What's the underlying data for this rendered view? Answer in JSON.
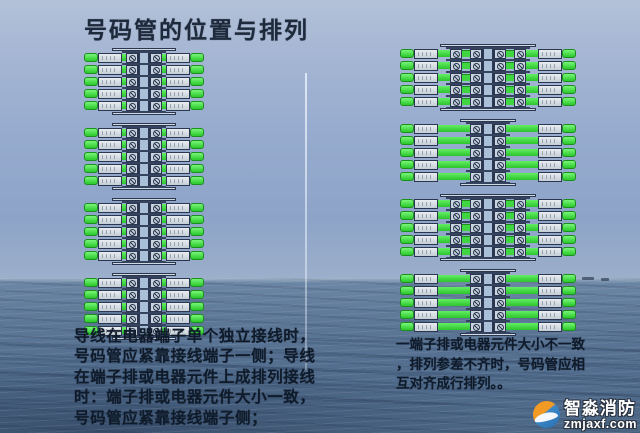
{
  "title": "号码管的位置与排列",
  "notes": {
    "left_lines": [
      "导线在电器端子单个独立接线时，",
      "号码管应紧靠接线端子一侧；导线",
      "在端子排或电器元件上成排列接线",
      "时：端子排或电器元件大小一致，",
      "号码管应紧靠接线端子侧；"
    ],
    "right_lines": [
      "一端子排或电器元件大小不一致",
      "，排列参差不齐时，号码管应相",
      "互对齐成行排列。。"
    ]
  },
  "watermark": {
    "brand": "智淼消防",
    "domain": "zmjaxf.com"
  },
  "diagrams": {
    "left": {
      "description": "uniform terminal strip, number tubes hugging terminals on both sides",
      "groups": [
        {
          "rows": 5,
          "cols": 2,
          "size": "narrow"
        },
        {
          "rows": 5,
          "cols": 2,
          "size": "narrow"
        },
        {
          "rows": 5,
          "cols": 2,
          "size": "narrow"
        },
        {
          "rows": 5,
          "cols": 2,
          "size": "narrow"
        }
      ]
    },
    "right": {
      "description": "terminal blocks of unequal width, number tubes aligned in vertical rows",
      "groups": [
        {
          "rows": 5,
          "cols": 4,
          "size": "wide"
        },
        {
          "rows": 5,
          "cols": 2,
          "size": "narrow"
        },
        {
          "rows": 5,
          "cols": 4,
          "size": "wide"
        },
        {
          "rows": 5,
          "cols": 2,
          "size": "narrow"
        }
      ]
    }
  },
  "colors": {
    "wire_green": "#3fd63f",
    "tube_fill": "#d3dade",
    "outline_navy": "#2b3750",
    "title_text": "#1e2a3c",
    "sky": "#96abce",
    "sea": "#526d8e",
    "logo_orange": "#f29a24",
    "logo_blue": "#2f80c0"
  }
}
